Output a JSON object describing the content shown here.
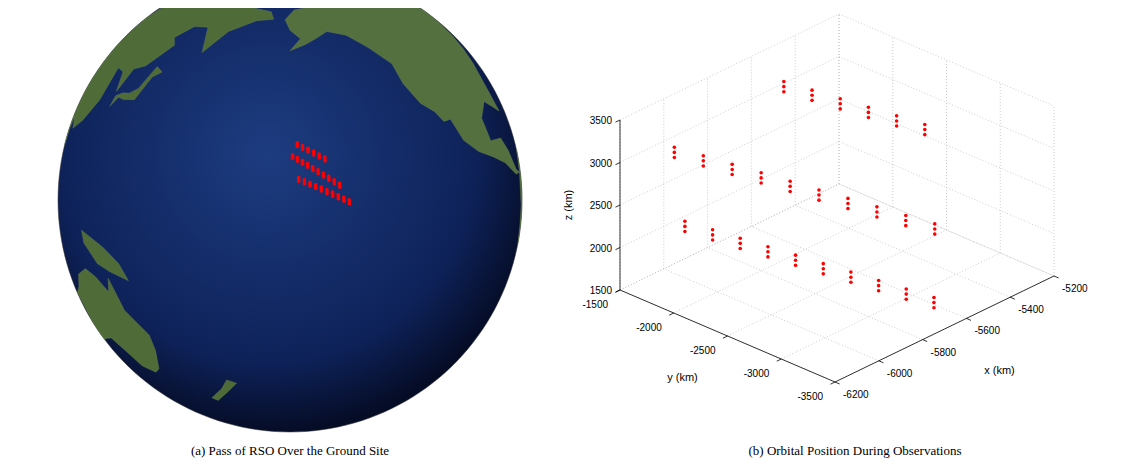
{
  "chart_data": [
    {
      "type": "globe",
      "caption": "(a) Pass of RSO Over the Ground Site",
      "color": "#ff0000"
    },
    {
      "type": "scatter3d",
      "caption": "(b) Orbital Position During Observations",
      "xlabel": "x (km)",
      "ylabel": "y (km)",
      "zlabel": "z (km)",
      "xlim": [
        -6200,
        -5200
      ],
      "xticks": [
        -6200,
        -6000,
        -5800,
        -5600,
        -5400,
        -5200
      ],
      "ylim": [
        -3500,
        -1500
      ],
      "yticks": [
        -3500,
        -3000,
        -2500,
        -2000,
        -1500
      ],
      "zlim": [
        1500,
        3500
      ],
      "zticks": [
        1500,
        2000,
        2500,
        3000,
        3500
      ],
      "grid": true,
      "color": "#ff0000",
      "marker": "dot",
      "x": [
        -6100,
        -6050,
        -6000,
        -5950,
        -5900,
        -5850,
        -5800,
        -5750,
        -5700,
        -5650,
        -6100,
        -6050,
        -6000,
        -5950,
        -5900,
        -5850,
        -5800,
        -5750,
        -5700,
        -5650,
        -6100,
        -6050,
        -6000,
        -5950,
        -5900,
        -5850,
        -5800,
        -5750,
        -5700,
        -5650,
        -6050,
        -5983,
        -5917,
        -5850,
        -5783,
        -5717,
        -5650,
        -5583,
        -5517,
        -5450,
        -6050,
        -5983,
        -5917,
        -5850,
        -5783,
        -5717,
        -5650,
        -5583,
        -5517,
        -5450,
        -6050,
        -5983,
        -5917,
        -5850,
        -5783,
        -5717,
        -5650,
        -5583,
        -5517,
        -5450,
        -5550,
        -5490,
        -5430,
        -5370,
        -5310,
        -5250,
        -5550,
        -5490,
        -5430,
        -5370,
        -5310,
        -5250,
        -5550,
        -5490,
        -5430,
        -5370,
        -5310,
        -5250
      ],
      "y": [
        -1900,
        -2056,
        -2211,
        -2367,
        -2522,
        -2678,
        -2833,
        -2989,
        -3144,
        -3300,
        -1900,
        -2056,
        -2211,
        -2367,
        -2522,
        -2678,
        -2833,
        -2989,
        -3144,
        -3300,
        -1900,
        -2056,
        -2211,
        -2367,
        -2522,
        -2678,
        -2833,
        -2989,
        -3144,
        -3300,
        -1700,
        -1833,
        -1967,
        -2100,
        -2233,
        -2367,
        -2500,
        -2633,
        -2767,
        -2900,
        -1700,
        -1833,
        -1967,
        -2100,
        -2233,
        -2367,
        -2500,
        -2633,
        -2767,
        -2900,
        -1700,
        -1833,
        -1967,
        -2100,
        -2233,
        -2367,
        -2500,
        -2633,
        -2767,
        -2900,
        -1700,
        -1840,
        -1980,
        -2120,
        -2260,
        -2400,
        -1700,
        -1840,
        -1980,
        -2120,
        -2260,
        -2400,
        -1700,
        -1840,
        -1980,
        -2120,
        -2260,
        -2400
      ],
      "z": [
        2400,
        2322,
        2244,
        2167,
        2089,
        2011,
        1933,
        1856,
        1778,
        1700,
        2340,
        2262,
        2184,
        2107,
        2029,
        1951,
        1873,
        1796,
        1718,
        1640,
        2280,
        2202,
        2124,
        2047,
        1969,
        1891,
        1813,
        1736,
        1658,
        1580,
        3100,
        2989,
        2878,
        2767,
        2656,
        2544,
        2433,
        2322,
        2211,
        2100,
        3040,
        2929,
        2818,
        2707,
        2596,
        2484,
        2373,
        2262,
        2151,
        2040,
        2980,
        2869,
        2758,
        2647,
        2536,
        2424,
        2313,
        2202,
        2091,
        1980,
        3250,
        3150,
        3050,
        2950,
        2850,
        2750,
        3190,
        3090,
        2990,
        2890,
        2790,
        2690,
        3130,
        3030,
        2930,
        2830,
        2730,
        2630
      ]
    }
  ]
}
